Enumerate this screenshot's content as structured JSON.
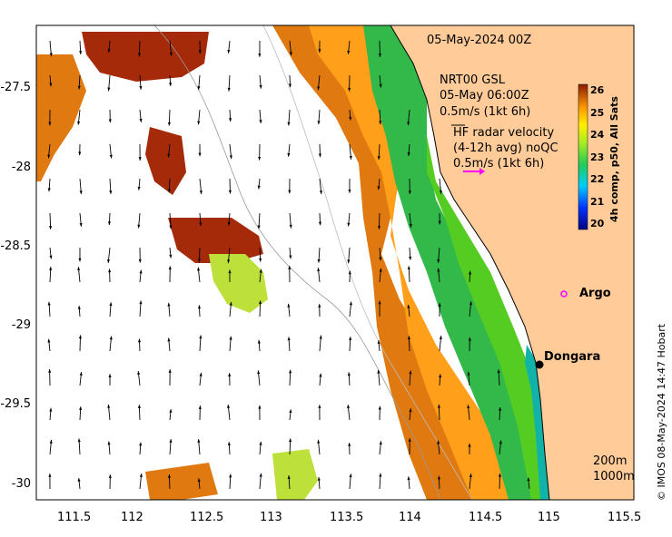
{
  "map": {
    "date_label": "05-May-2024 00Z",
    "model_title": "NRT00 GSL",
    "model_time": "05-May 06:00Z",
    "model_scale": "0.5m/s (1kt 6h)",
    "hf_title": "HF radar velocity",
    "hf_avg": "(4-12h avg) noQC",
    "hf_scale": "0.5m/s (1kt 6h)",
    "contour_200": "200m",
    "contour_1000": "1000m",
    "credit": "© IMOS 08-May-2024 14:47 Hobart",
    "places": [
      {
        "name": "Argo",
        "lon": 114.9,
        "lat": -28.87,
        "marker": "argo-float"
      },
      {
        "name": "Dongara",
        "lon": 114.93,
        "lat": -29.25,
        "marker": "town"
      }
    ],
    "x_ticks": [
      "111.5",
      "112",
      "112.5",
      "113",
      "113.5",
      "114",
      "114.5",
      "115",
      "115.5"
    ],
    "y_ticks": [
      "-27.5",
      "-28",
      "-28.5",
      "-29",
      "-29.5",
      "-30"
    ],
    "colorbar": {
      "title": "4h comp, p50, All Sats",
      "ticks": [
        "26",
        "25",
        "24",
        "23",
        "22",
        "21",
        "20"
      ],
      "range": [
        20,
        26
      ]
    },
    "colors": {
      "land": "#ffcc99",
      "sst_low": "#000080",
      "sst_high": "#8b1a00",
      "hf_arrow": "#ff00ff"
    }
  }
}
